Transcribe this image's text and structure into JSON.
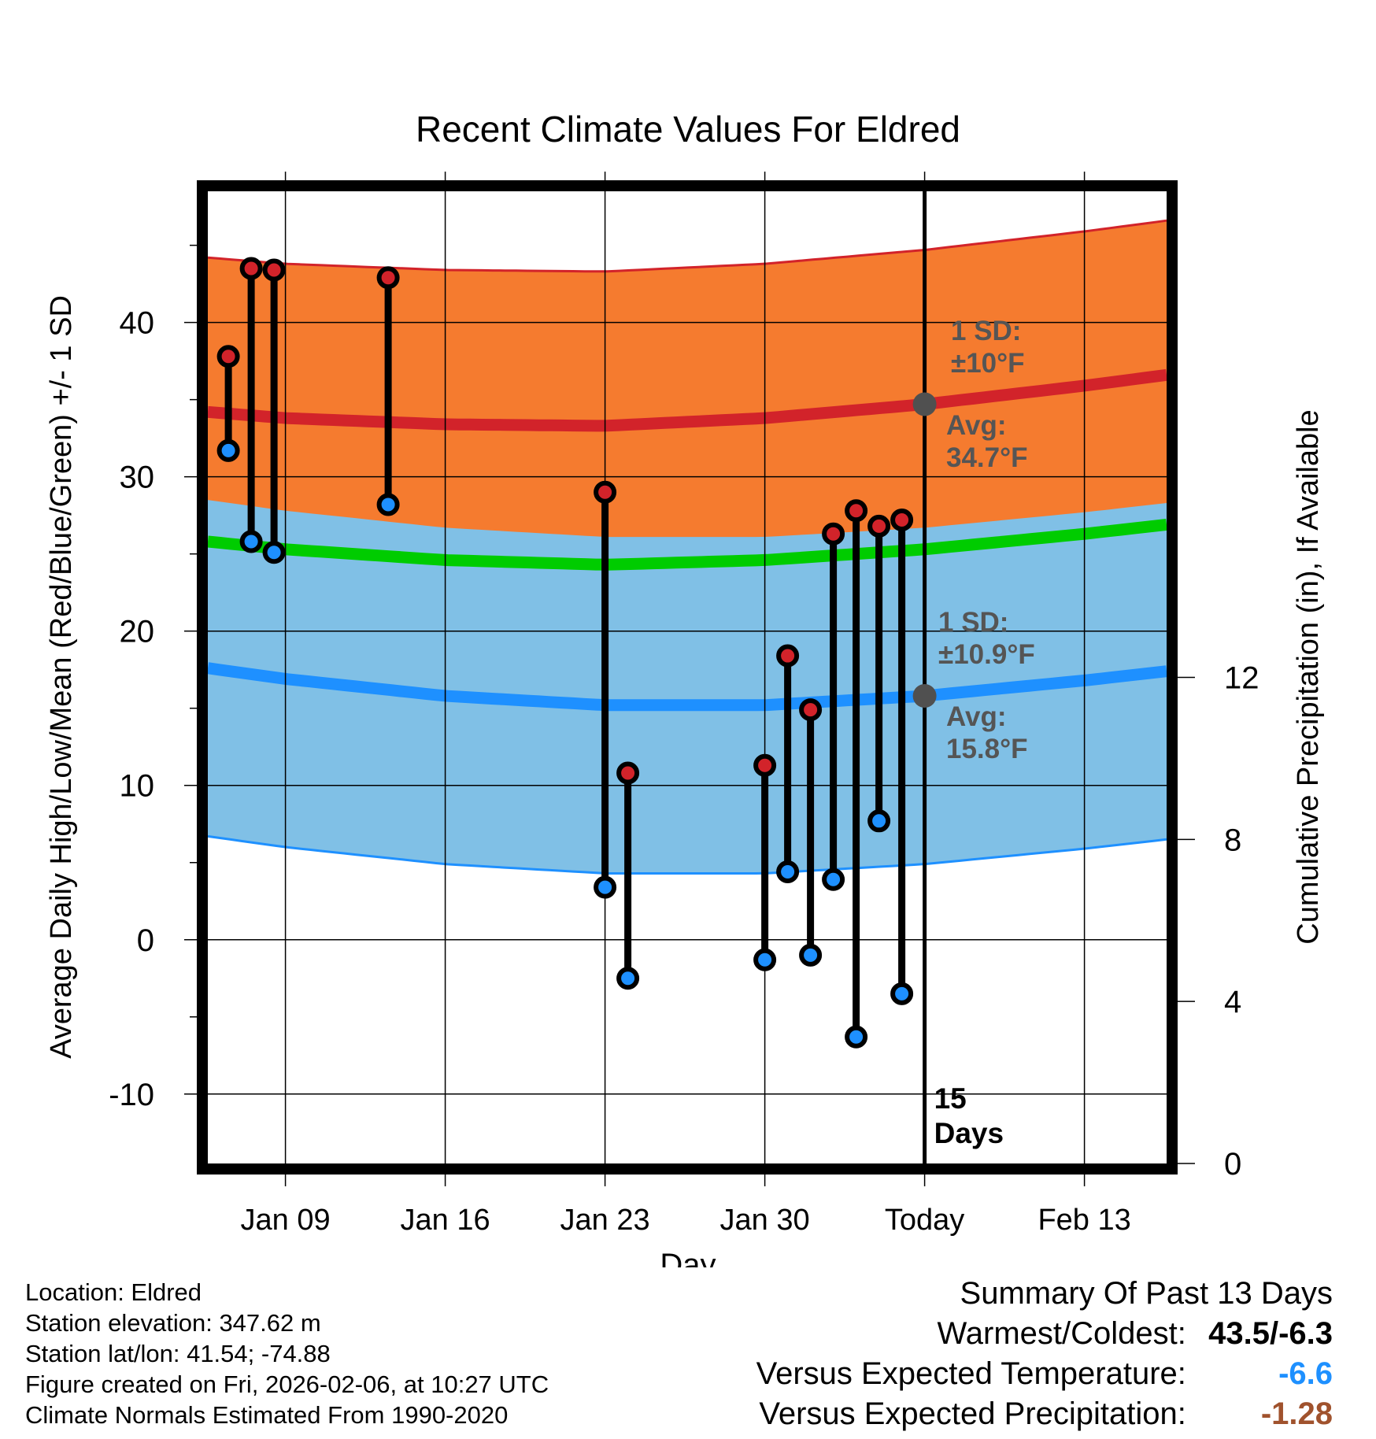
{
  "chart_data": {
    "type": "range-bar",
    "title": "Recent Climate Values For Eldred",
    "xlabel": "Day",
    "ylabel": "Average Daily High/Low/Mean (Red/Blue/Green) +/- 1 SD",
    "y2label": "Cumulative Precipitation (in), If Available",
    "ylim": [
      -14.5,
      48.5
    ],
    "y_ticks": [
      -10,
      0,
      10,
      20,
      30,
      40
    ],
    "y_tick_labels": [
      "-10",
      "0",
      "10",
      "20",
      "30",
      "40"
    ],
    "y2lim": [
      0,
      24
    ],
    "y2_ticks": [
      0,
      4,
      8,
      12
    ],
    "y2_tick_labels": [
      "0",
      "4",
      "8",
      "12"
    ],
    "x_day_range": [
      4.6,
      46.6
    ],
    "x_ticks": [
      8,
      15,
      22,
      29,
      36,
      43
    ],
    "x_tick_labels": [
      "Jan 09",
      "Jan 16",
      "Jan 23",
      "Jan 30",
      "Today",
      "Feb 13"
    ],
    "today_day": 36,
    "days_label": [
      "15",
      "Days"
    ],
    "normals": {
      "day": [
        4.6,
        8,
        15,
        22,
        29,
        36,
        43,
        46.6
      ],
      "high_avg": [
        34.2,
        33.8,
        33.4,
        33.3,
        33.8,
        34.7,
        35.9,
        36.6
      ],
      "high_sd": 10,
      "low_avg": [
        17.6,
        16.9,
        15.8,
        15.2,
        15.2,
        15.8,
        16.8,
        17.4
      ],
      "low_sd": 10.9,
      "mean_avg": [
        25.8,
        25.3,
        24.6,
        24.3,
        24.6,
        25.3,
        26.3,
        26.9
      ]
    },
    "observations": [
      {
        "day": 5.5,
        "high": 37.8,
        "low": 31.7
      },
      {
        "day": 6.5,
        "high": 43.5,
        "low": 25.8
      },
      {
        "day": 7.5,
        "high": 43.4,
        "low": 25.1
      },
      {
        "day": 12.5,
        "high": 42.9,
        "low": 28.2
      },
      {
        "day": 22,
        "high": 29.0,
        "low": 3.4
      },
      {
        "day": 23,
        "high": 10.8,
        "low": -2.5
      },
      {
        "day": 29,
        "high": 11.3,
        "low": -1.3
      },
      {
        "day": 30,
        "high": 18.4,
        "low": 4.4
      },
      {
        "day": 31,
        "high": 14.9,
        "low": -1.0
      },
      {
        "day": 32,
        "high": 26.3,
        "low": 3.9
      },
      {
        "day": 33,
        "high": 27.8,
        "low": -6.3
      },
      {
        "day": 34,
        "high": 26.8,
        "low": 7.7
      },
      {
        "day": 35,
        "high": 27.2,
        "low": -3.5
      }
    ],
    "annotations": {
      "high_sd": [
        "1 SD:",
        "±10°F"
      ],
      "high_avg": [
        "Avg:",
        "34.7°F"
      ],
      "low_sd": [
        "1 SD:",
        "±10.9°F"
      ],
      "low_avg": [
        "Avg:",
        "15.8°F"
      ]
    },
    "colors": {
      "high_band": "#f57b2f",
      "high_line": "#d2232a",
      "overlap": "#950e16",
      "mean_line": "#00cc00",
      "low_band": "#80c0e6",
      "low_line": "#1e90ff",
      "high_marker": "#d2232a",
      "low_marker": "#1e90ff",
      "annotation_text": "#555555"
    }
  },
  "info": {
    "location": "Location: Eldred",
    "elevation": "Station elevation: 347.62 m",
    "latlon": "Station lat/lon: 41.54; -74.88",
    "created": "Figure created on Fri, 2026-02-06, at 10:27 UTC",
    "normals_source": "Climate Normals Estimated From 1990-2020"
  },
  "summary": {
    "title": "Summary Of Past 13 Days",
    "warmest_label": "Warmest/Coldest:",
    "warmest_value": "43.5/-6.3",
    "temp_label": "Versus Expected Temperature:",
    "temp_value": "-6.6",
    "temp_color": "#1e90ff",
    "precip_label": "Versus Expected Precipitation:",
    "precip_value": "-1.28",
    "precip_color": "#a0522d"
  }
}
